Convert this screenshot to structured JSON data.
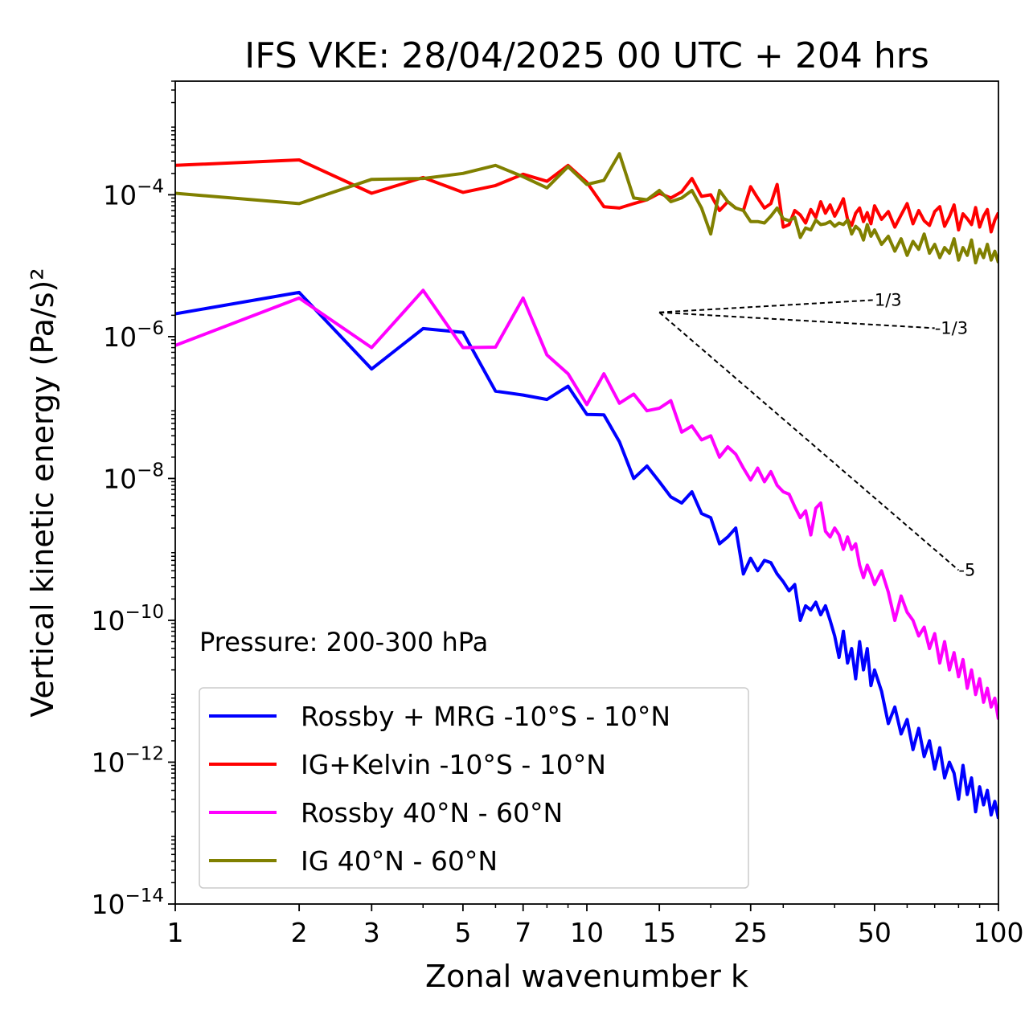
{
  "chart_data": {
    "type": "line",
    "title": "IFS VKE: 28/04/2025 00 UTC + 204 hrs",
    "xlabel": "Zonal wavenumber k",
    "ylabel": "Vertical kinetic energy (Pa/s)²",
    "annotation": "Pressure: 200-300 hPa",
    "x_scale": "log",
    "y_scale": "log",
    "xlim": [
      1,
      100
    ],
    "ylim": [
      1e-14,
      0.004
    ],
    "xticks": [
      1,
      2,
      3,
      5,
      7,
      10,
      15,
      25,
      50,
      100
    ],
    "xtick_labels": [
      "1",
      "2",
      "3",
      "5",
      "7",
      "10",
      "15",
      "25",
      "50",
      "100"
    ],
    "yticks": [
      1e-14,
      1e-12,
      1e-10,
      1e-08,
      1e-06,
      0.0001
    ],
    "ytick_labels": [
      {
        "base": "10",
        "exp": "−14"
      },
      {
        "base": "10",
        "exp": "−12"
      },
      {
        "base": "10",
        "exp": "−10"
      },
      {
        "base": "10",
        "exp": "−8"
      },
      {
        "base": "10",
        "exp": "−6"
      },
      {
        "base": "10",
        "exp": "−4"
      }
    ],
    "legend_position": "lower-left",
    "grid": false,
    "series": [
      {
        "name": "Rossby + MRG -10°S - 10°N",
        "color": "#0000ff",
        "x": [
          1,
          2,
          3,
          4,
          5,
          6,
          7,
          8,
          9,
          10,
          11,
          12,
          13,
          14,
          15,
          16,
          17,
          18,
          19,
          20,
          21,
          22,
          23,
          24,
          25,
          26,
          27,
          28,
          29,
          30,
          31,
          32,
          33,
          34,
          35,
          36,
          37,
          38,
          39,
          40,
          41,
          42,
          43,
          44,
          45,
          46,
          47,
          48,
          49,
          50,
          52,
          54,
          56,
          58,
          60,
          62,
          64,
          66,
          68,
          70,
          72,
          74,
          76,
          78,
          80,
          82,
          84,
          86,
          88,
          90,
          92,
          94,
          96,
          98,
          100
        ],
        "values": [
          2.1e-06,
          4.2e-06,
          3.5e-07,
          1.3e-06,
          1.15e-06,
          1.7e-07,
          1.5e-07,
          1.3e-07,
          2e-07,
          8e-08,
          7.9e-08,
          3.3e-08,
          1e-08,
          1.5e-08,
          9e-09,
          5.5e-09,
          4.5e-09,
          6.5e-09,
          3.2e-09,
          2.8e-09,
          1.2e-09,
          1.5e-09,
          2e-09,
          4.5e-10,
          7.5e-10,
          5e-10,
          7e-10,
          6.5e-10,
          4.5e-10,
          3.5e-10,
          2.6e-10,
          3.2e-10,
          1e-10,
          1.6e-10,
          1.4e-10,
          1.8e-10,
          1.2e-10,
          1.6e-10,
          1e-10,
          6e-11,
          3e-11,
          7e-11,
          2.5e-11,
          4e-11,
          1.5e-11,
          5e-11,
          2e-11,
          4e-11,
          1.2e-11,
          2e-11,
          1e-11,
          3.5e-12,
          6e-12,
          2.5e-12,
          4e-12,
          1.5e-12,
          3e-12,
          1.2e-12,
          2e-12,
          8e-13,
          1.6e-12,
          6e-13,
          1e-12,
          7e-13,
          3e-13,
          9e-13,
          3.5e-13,
          6e-13,
          2e-13,
          4.5e-13,
          2.5e-13,
          4e-13,
          1.8e-13,
          2.8e-13,
          1.6e-13
        ]
      },
      {
        "name": "IG+Kelvin -10°S - 10°N",
        "color": "#ff0000",
        "x": [
          1,
          2,
          3,
          4,
          5,
          6,
          7,
          8,
          9,
          10,
          11,
          12,
          13,
          14,
          15,
          16,
          17,
          18,
          19,
          20,
          21,
          22,
          23,
          24,
          25,
          26,
          27,
          28,
          29,
          30,
          31,
          32,
          33,
          34,
          35,
          36,
          37,
          38,
          39,
          40,
          41,
          42,
          43,
          44,
          45,
          46,
          47,
          48,
          49,
          50,
          52,
          54,
          56,
          58,
          60,
          62,
          64,
          66,
          68,
          70,
          72,
          74,
          76,
          78,
          80,
          82,
          84,
          86,
          88,
          90,
          92,
          94,
          96,
          98,
          100
        ],
        "values": [
          0.00026,
          0.00031,
          0.000105,
          0.000175,
          0.000108,
          0.000135,
          0.000195,
          0.000155,
          0.00026,
          0.00015,
          6.8e-05,
          6.5e-05,
          7.5e-05,
          8.5e-05,
          0.000105,
          9e-05,
          0.00011,
          0.00017,
          9.5e-05,
          0.0001,
          6e-05,
          8e-05,
          6.5e-05,
          6e-05,
          0.00013,
          9e-05,
          6.5e-05,
          7.5e-05,
          0.00014,
          3.5e-05,
          3.8e-05,
          6e-05,
          5.2e-05,
          4e-05,
          6.2e-05,
          4.8e-05,
          8e-05,
          5.5e-05,
          7.2e-05,
          5e-05,
          6.5e-05,
          8.8e-05,
          4.5e-05,
          3.7e-05,
          5.5e-05,
          6.5e-05,
          4.2e-05,
          5.6e-05,
          3.9e-05,
          7e-05,
          4.5e-05,
          5.8e-05,
          3.5e-05,
          5.2e-05,
          7.5e-05,
          3.9e-05,
          6e-05,
          4.3e-05,
          3.7e-05,
          5.8e-05,
          6.8e-05,
          3.6e-05,
          4.9e-05,
          7.2e-05,
          3.2e-05,
          5.4e-05,
          4.6e-05,
          3.8e-05,
          6.6e-05,
          3.5e-05,
          5e-05,
          6.2e-05,
          3e-05,
          4.4e-05,
          5.6e-05
        ]
      },
      {
        "name": "Rossby 40°N - 60°N",
        "color": "#ff00ff",
        "x": [
          1,
          2,
          3,
          4,
          5,
          6,
          7,
          8,
          9,
          10,
          11,
          12,
          13,
          14,
          15,
          16,
          17,
          18,
          19,
          20,
          21,
          22,
          23,
          24,
          25,
          26,
          27,
          28,
          29,
          30,
          31,
          32,
          33,
          34,
          35,
          36,
          37,
          38,
          39,
          40,
          41,
          42,
          43,
          44,
          45,
          46,
          47,
          48,
          49,
          50,
          52,
          54,
          56,
          58,
          60,
          62,
          64,
          66,
          68,
          70,
          72,
          74,
          76,
          78,
          80,
          82,
          84,
          86,
          88,
          90,
          92,
          94,
          96,
          98,
          100
        ],
        "values": [
          7.5e-07,
          3.5e-06,
          7e-07,
          4.5e-06,
          7e-07,
          7.1e-07,
          3.5e-06,
          5.5e-07,
          3e-07,
          1.1e-07,
          3e-07,
          1.15e-07,
          1.55e-07,
          9e-08,
          9.8e-08,
          1.25e-07,
          4.5e-08,
          5.5e-08,
          3.5e-08,
          4e-08,
          2e-08,
          2.8e-08,
          2.2e-08,
          1.4e-08,
          9.5e-09,
          1.4e-08,
          9e-09,
          1.25e-08,
          8e-09,
          6.5e-09,
          6e-09,
          4e-09,
          2.8e-09,
          3.5e-09,
          1.6e-09,
          3.8e-09,
          4.5e-09,
          1.8e-09,
          1.5e-09,
          2e-09,
          1.6e-09,
          1e-09,
          1.5e-09,
          1e-09,
          1.2e-09,
          6e-10,
          4e-10,
          6e-10,
          4.5e-10,
          3.2e-10,
          5e-10,
          2.5e-10,
          1e-10,
          2.2e-10,
          1.3e-10,
          1e-10,
          6e-11,
          8e-11,
          4e-11,
          6.5e-11,
          2.5e-11,
          5e-11,
          2e-11,
          3.5e-11,
          1.6e-11,
          2.8e-11,
          1.1e-11,
          2e-11,
          9e-12,
          1.5e-11,
          7e-12,
          1.1e-11,
          6e-12,
          8e-12,
          4e-12
        ]
      },
      {
        "name": "IG 40°N - 60°N",
        "color": "#808000",
        "x": [
          1,
          2,
          3,
          4,
          5,
          6,
          7,
          8,
          9,
          10,
          11,
          12,
          13,
          14,
          15,
          16,
          17,
          18,
          19,
          20,
          21,
          22,
          23,
          24,
          25,
          26,
          27,
          28,
          29,
          30,
          31,
          32,
          33,
          34,
          35,
          36,
          37,
          38,
          39,
          40,
          41,
          42,
          43,
          44,
          45,
          46,
          47,
          48,
          49,
          50,
          52,
          54,
          56,
          58,
          60,
          62,
          64,
          66,
          68,
          70,
          72,
          74,
          76,
          78,
          80,
          82,
          84,
          86,
          88,
          90,
          92,
          94,
          96,
          98,
          100
        ],
        "values": [
          0.000105,
          7.5e-05,
          0.000165,
          0.00017,
          0.0002,
          0.00026,
          0.00018,
          0.000125,
          0.00025,
          0.00014,
          0.00016,
          0.00038,
          9e-05,
          8.5e-05,
          0.000115,
          8e-05,
          9e-05,
          0.000115,
          6.5e-05,
          2.8e-05,
          0.000115,
          8e-05,
          6.5e-05,
          6e-05,
          4.2e-05,
          4.2e-05,
          4e-05,
          5e-05,
          6.5e-05,
          4.6e-05,
          4.3e-05,
          4.8e-05,
          2.5e-05,
          3.4e-05,
          3.2e-05,
          4.4e-05,
          3.8e-05,
          3.9e-05,
          4.2e-05,
          3.6e-05,
          4e-05,
          3.8e-05,
          4.4e-05,
          2.8e-05,
          3.6e-05,
          3.2e-05,
          2.3e-05,
          3.8e-05,
          2.6e-05,
          3.2e-05,
          2e-05,
          2.6e-05,
          1.6e-05,
          2.4e-05,
          1.4e-05,
          2.2e-05,
          1.7e-05,
          2.8e-05,
          1.5e-05,
          2e-05,
          1.3e-05,
          1.8e-05,
          1.5e-05,
          2.4e-05,
          1.2e-05,
          1.8e-05,
          1.4e-05,
          2.3e-05,
          1.1e-05,
          1.7e-05,
          1.3e-05,
          2e-05,
          1.2e-05,
          1.6e-05,
          1.1e-05
        ]
      }
    ],
    "reference_lines": [
      {
        "label": "1/3",
        "slope": 0.333333,
        "x_start": 15,
        "y_start": 2.2e-06,
        "x_end": 50
      },
      {
        "label": "-1/3",
        "slope": -0.333333,
        "x_start": 15,
        "y_start": 2.2e-06,
        "x_end": 70
      },
      {
        "label": "-5",
        "slope": -5,
        "x_start": 15,
        "y_start": 2.2e-06,
        "x_end": 80
      }
    ]
  }
}
